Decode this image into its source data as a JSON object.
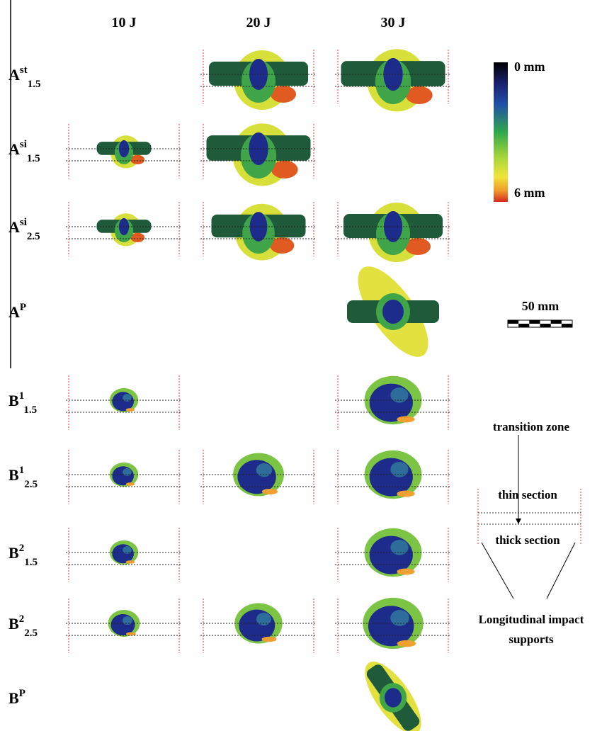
{
  "columns": [
    "10 J",
    "20 J",
    "30 J"
  ],
  "rows": [
    {
      "base": "A",
      "sup": "st",
      "sub": "1.5"
    },
    {
      "base": "A",
      "sup": "si",
      "sub": "1.5"
    },
    {
      "base": "A",
      "sup": "si",
      "sub": "2.5"
    },
    {
      "base": "A",
      "sup": "P"
    },
    {
      "base": "B",
      "sup": "1",
      "sub": "1.5"
    },
    {
      "base": "B",
      "sup": "1",
      "sub": "2.5"
    },
    {
      "base": "B",
      "sup": "2",
      "sub": "1.5"
    },
    {
      "base": "B",
      "sup": "2",
      "sub": "2.5"
    },
    {
      "base": "B",
      "sup": "P"
    }
  ],
  "colorbar": {
    "top_label": "0 mm",
    "bottom_label": "6 mm"
  },
  "scale_bar": {
    "label": "50 mm"
  },
  "schematic": {
    "transition": "transition zone",
    "thin": "thin section",
    "thick": "thick section",
    "supports_line1": "Longitudinal impact",
    "supports_line2": "supports"
  }
}
